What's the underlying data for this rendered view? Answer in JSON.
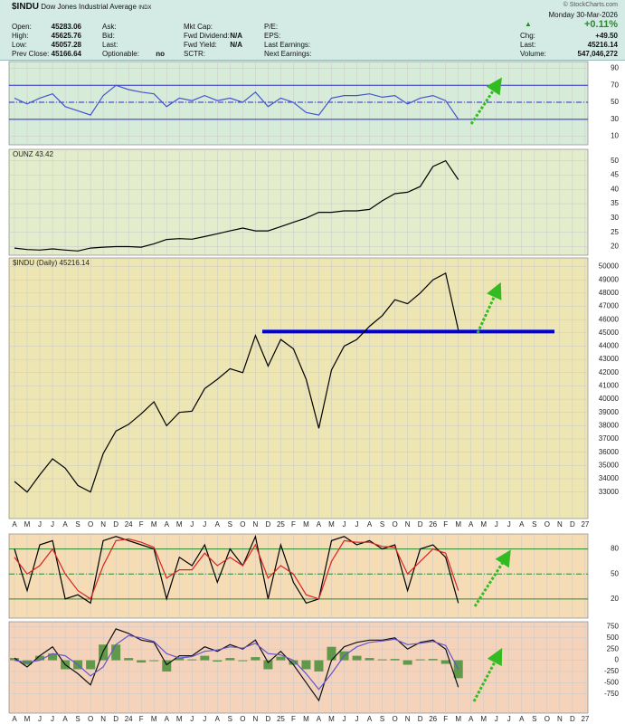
{
  "header": {
    "symbol": "$INDU",
    "name": "Dow Jones Industrial Average",
    "exchange": "INDX",
    "watermark": "© StockCharts.com",
    "date": "Monday 30-Mar-2026",
    "change_pct": "+0.11%",
    "columns": [
      [
        {
          "label": "Open:",
          "value": "45283.06"
        },
        {
          "label": "High:",
          "value": "45625.76"
        },
        {
          "label": "Low:",
          "value": "45057.28"
        },
        {
          "label": "Prev Close:",
          "value": "45166.64"
        }
      ],
      [
        {
          "label": "Ask:"
        },
        {
          "label": "Bid:"
        },
        {
          "label": "Last:"
        },
        {
          "label": "Optionable:",
          "value": "no"
        }
      ],
      [
        {
          "label": "Mkt Cap:"
        },
        {
          "label": "Fwd Dividend:",
          "value": "N/A"
        },
        {
          "label": "Fwd Yield:",
          "value": "N/A"
        },
        {
          "label": "SCTR:"
        }
      ],
      [
        {
          "label": "P/E:"
        },
        {
          "label": "EPS:"
        },
        {
          "label": "Last Earnings:"
        },
        {
          "label": "Next Earnings:"
        }
      ],
      [
        {
          "label": "Chg:",
          "value": "+49.50"
        },
        {
          "label": "Last:",
          "value": "45216.14"
        },
        {
          "label": "Volume:",
          "value": "547,046,272"
        }
      ]
    ]
  },
  "chart_data": [
    {
      "type": "line",
      "ylim": [
        0,
        98
      ],
      "yticks": [
        10,
        30,
        50,
        70,
        90
      ],
      "background": "#d7ecd8",
      "reflines": [
        {
          "value": 70
        },
        {
          "value": 50,
          "dashed": true
        },
        {
          "value": 30
        }
      ],
      "refline_color": "#2a2acc",
      "series": [
        {
          "color": "#4455cc",
          "values": [
            55,
            48,
            55,
            60,
            45,
            40,
            35,
            58,
            70,
            65,
            62,
            60,
            45,
            55,
            52,
            58,
            52,
            55,
            50,
            62,
            45,
            55,
            50,
            38,
            35,
            55,
            58,
            58,
            60,
            56,
            58,
            48,
            55,
            58,
            52,
            30,
            null,
            null,
            null,
            null,
            null,
            null,
            null,
            null,
            null,
            null
          ]
        }
      ]
    },
    {
      "type": "line",
      "label": "OUNZ 43.42",
      "ylim": [
        17,
        54
      ],
      "yticks": [
        20,
        25,
        30,
        35,
        40,
        45,
        50
      ],
      "background": "#e3edcc",
      "series": [
        {
          "color": "#000000",
          "values": [
            19.5,
            19,
            18.8,
            19.2,
            18.8,
            18.5,
            19.5,
            19.8,
            20,
            20,
            19.8,
            21,
            22.5,
            22.8,
            22.6,
            23.5,
            24.5,
            25.5,
            26.5,
            25.5,
            25.5,
            27,
            28.5,
            30,
            32,
            32,
            32.5,
            32.5,
            33,
            36,
            38.5,
            39,
            41,
            48,
            50,
            43.42,
            null,
            null,
            null,
            null,
            null,
            null,
            null,
            null,
            null,
            null
          ]
        }
      ]
    },
    {
      "type": "line",
      "label": "$INDU (Daily) 45216.14",
      "ylim": [
        31000,
        50650
      ],
      "yticks": [
        33000,
        34000,
        35000,
        36000,
        37000,
        38000,
        39000,
        40000,
        41000,
        42000,
        43000,
        44000,
        45000,
        46000,
        47000,
        48000,
        49000,
        50000
      ],
      "background": "#eee6b2",
      "support": {
        "value": 45100,
        "color": "#0000dd"
      },
      "categories": [
        "A",
        "M",
        "J",
        "J",
        "A",
        "S",
        "O",
        "N",
        "D",
        "24",
        "F",
        "M",
        "A",
        "M",
        "J",
        "J",
        "A",
        "S",
        "O",
        "N",
        "D",
        "25",
        "F",
        "M",
        "A",
        "M",
        "J",
        "J",
        "A",
        "S",
        "O",
        "N",
        "D",
        "26",
        "F",
        "M",
        "A",
        "M",
        "J",
        "J",
        "A",
        "S",
        "O",
        "N",
        "D",
        "27"
      ],
      "series": [
        {
          "color": "#000000",
          "values": [
            33800,
            33000,
            34300,
            35500,
            34800,
            33500,
            33000,
            35900,
            37600,
            38100,
            38900,
            39800,
            38000,
            39000,
            39100,
            40800,
            41500,
            42300,
            42000,
            44800,
            42500,
            44500,
            43800,
            41500,
            37800,
            42200,
            44000,
            44500,
            45500,
            46300,
            47500,
            47200,
            48000,
            49000,
            49500,
            45216.14,
            null,
            null,
            null,
            null,
            null,
            null,
            null,
            null,
            null,
            null
          ]
        }
      ]
    },
    {
      "type": "line",
      "ylim": [
        -3,
        98
      ],
      "yticks": [
        20,
        50,
        80
      ],
      "background": "#f5dcb5",
      "reflines": [
        {
          "value": 80
        },
        {
          "value": 50,
          "dashed": true
        },
        {
          "value": 20
        }
      ],
      "refline_color": "#2a8a2a",
      "series": [
        {
          "color": "#000000",
          "values": [
            80,
            30,
            85,
            90,
            20,
            25,
            15,
            90,
            95,
            90,
            85,
            80,
            20,
            70,
            60,
            85,
            40,
            80,
            60,
            95,
            20,
            85,
            40,
            15,
            20,
            90,
            95,
            85,
            90,
            80,
            85,
            30,
            80,
            85,
            70,
            15,
            null,
            null,
            null,
            null,
            null,
            null,
            null,
            null,
            null,
            null
          ]
        },
        {
          "color": "#dd2222",
          "values": [
            70,
            50,
            60,
            80,
            50,
            30,
            20,
            60,
            90,
            92,
            88,
            82,
            45,
            55,
            55,
            75,
            60,
            70,
            60,
            85,
            45,
            60,
            50,
            25,
            20,
            65,
            90,
            88,
            88,
            83,
            82,
            50,
            65,
            80,
            75,
            30,
            null,
            null,
            null,
            null,
            null,
            null,
            null,
            null,
            null,
            null
          ]
        }
      ]
    },
    {
      "type": "line",
      "ylim": [
        -1180,
        860
      ],
      "yticks": [
        -750,
        -500,
        -250,
        0,
        250,
        500,
        750
      ],
      "background": "#f5d3ba",
      "categories": [
        "A",
        "M",
        "J",
        "J",
        "A",
        "S",
        "O",
        "N",
        "D",
        "24",
        "F",
        "M",
        "A",
        "M",
        "J",
        "J",
        "A",
        "S",
        "O",
        "N",
        "D",
        "25",
        "F",
        "M",
        "A",
        "M",
        "J",
        "J",
        "A",
        "S",
        "O",
        "N",
        "D",
        "26",
        "F",
        "M",
        "A",
        "M",
        "J",
        "J",
        "A",
        "S",
        "O",
        "N",
        "D",
        "27"
      ],
      "series": [
        {
          "kind": "bar",
          "color": "#3d8a2e",
          "values": [
            50,
            -100,
            100,
            150,
            -200,
            -200,
            -200,
            350,
            350,
            50,
            -50,
            -20,
            -250,
            50,
            20,
            100,
            -30,
            50,
            -20,
            70,
            -200,
            80,
            -100,
            -200,
            -250,
            300,
            200,
            100,
            50,
            20,
            30,
            -100,
            20,
            30,
            -80,
            -400,
            null,
            null,
            null,
            null,
            null,
            null,
            null,
            null,
            null,
            null
          ]
        },
        {
          "color": "#111111",
          "values": [
            50,
            -150,
            100,
            300,
            -100,
            -300,
            -550,
            200,
            700,
            600,
            450,
            400,
            -100,
            100,
            100,
            300,
            200,
            350,
            250,
            450,
            -50,
            200,
            -100,
            -500,
            -900,
            0,
            300,
            400,
            450,
            450,
            500,
            250,
            400,
            450,
            250,
            -600,
            null,
            null,
            null,
            null,
            null,
            null,
            null,
            null,
            null,
            null
          ]
        },
        {
          "color": "#6655cc",
          "values": [
            0,
            -50,
            0,
            150,
            100,
            -100,
            -350,
            -150,
            350,
            550,
            500,
            420,
            150,
            50,
            80,
            200,
            230,
            300,
            270,
            380,
            150,
            120,
            0,
            -300,
            -650,
            -300,
            100,
            300,
            400,
            430,
            470,
            350,
            380,
            420,
            330,
            -200,
            null,
            null,
            null,
            null,
            null,
            null,
            null,
            null,
            null,
            null
          ]
        }
      ]
    }
  ]
}
